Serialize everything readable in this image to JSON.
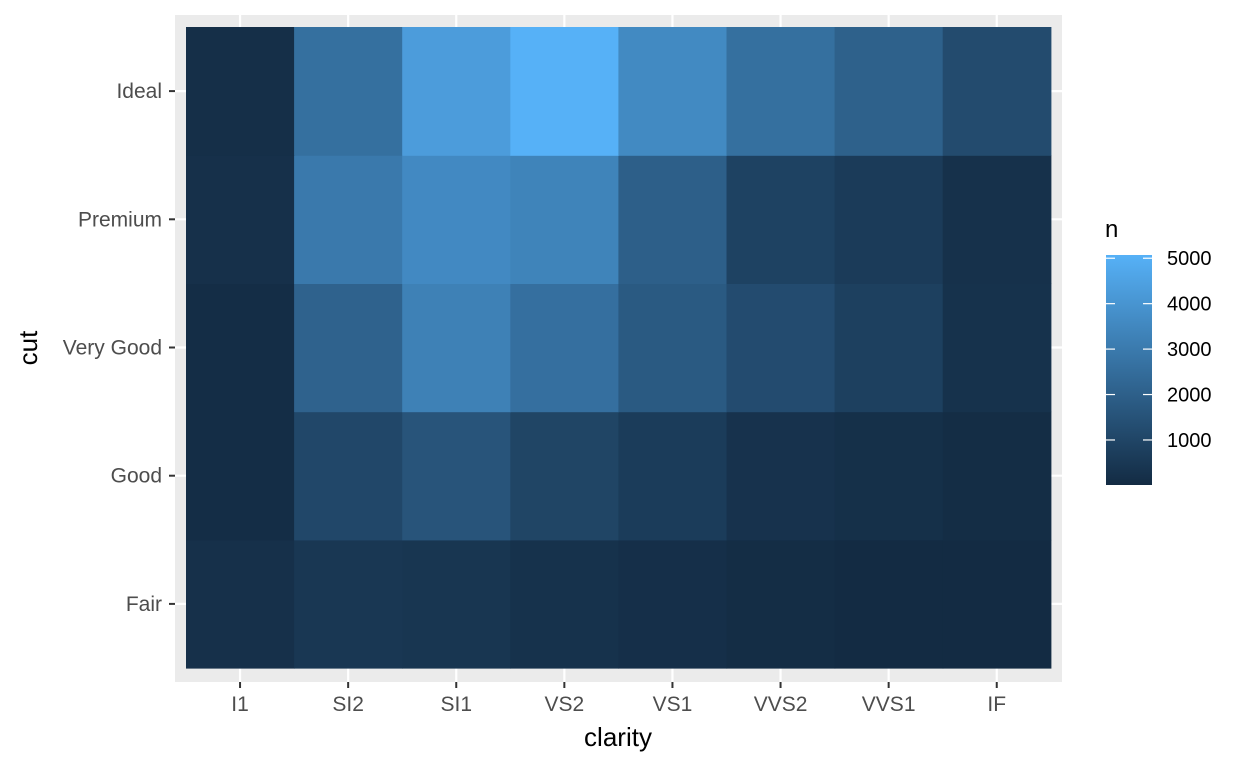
{
  "chart_data": {
    "type": "heatmap",
    "title": "",
    "xlabel": "clarity",
    "ylabel": "cut",
    "x_categories": [
      "I1",
      "SI2",
      "SI1",
      "VS2",
      "VS1",
      "VVS2",
      "VVS1",
      "IF"
    ],
    "y_categories": [
      "Fair",
      "Good",
      "Very Good",
      "Premium",
      "Ideal"
    ],
    "values": [
      [
        210,
        466,
        408,
        261,
        170,
        69,
        17,
        9
      ],
      [
        96,
        1081,
        1560,
        978,
        648,
        286,
        186,
        71
      ],
      [
        84,
        2100,
        3240,
        2591,
        1775,
        1235,
        789,
        268
      ],
      [
        205,
        2949,
        3575,
        3357,
        1989,
        870,
        616,
        230
      ],
      [
        146,
        2598,
        4282,
        5071,
        3589,
        2606,
        2047,
        1212
      ]
    ],
    "legend": {
      "title": "n",
      "position": "right",
      "ticks": [
        1000,
        2000,
        3000,
        4000,
        5000
      ],
      "range": [
        9,
        5071
      ],
      "low_color": "#132b43",
      "high_color": "#56b1f7"
    },
    "grid": true,
    "panel_background": "#ebebeb",
    "grid_color": "#ffffff"
  }
}
